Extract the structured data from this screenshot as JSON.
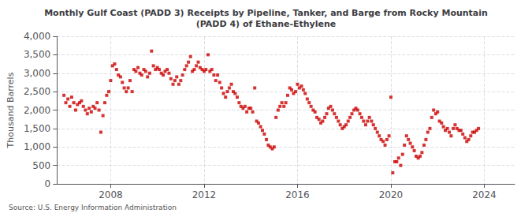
{
  "chart_data": {
    "type": "scatter",
    "title": "Monthly Gulf Coast (PADD 3) Receipts by Pipeline, Tanker, and Barge from Rocky Mountain\n(PADD 4) of Ethane-Ethylene",
    "ylabel": "Thousand Barrels",
    "annotation": "Source: U.S. Energy Information Administration",
    "color": "#CC0000",
    "marker": "square",
    "grid": true,
    "xlim": [
      2005.7,
      2025.3
    ],
    "xticks": [
      2008,
      2012,
      2016,
      2020,
      2024
    ],
    "ylim": [
      0,
      4000
    ],
    "yticks": [
      0,
      500,
      {
        "value": 1000,
        "label": "1,000"
      },
      {
        "value": 1500,
        "label": "1,500"
      },
      {
        "value": 2000,
        "label": "2,000"
      },
      {
        "value": 2500,
        "label": "2,500"
      },
      {
        "value": 3000,
        "label": "3,000"
      },
      {
        "value": 3500,
        "label": "3,500"
      },
      {
        "value": 4000,
        "label": "4,000"
      }
    ],
    "x": [
      2006.0,
      2006.08,
      2006.17,
      2006.25,
      2006.33,
      2006.42,
      2006.5,
      2006.58,
      2006.67,
      2006.75,
      2006.83,
      2006.92,
      2007.0,
      2007.08,
      2007.17,
      2007.25,
      2007.33,
      2007.42,
      2007.5,
      2007.58,
      2007.67,
      2007.75,
      2007.83,
      2007.92,
      2008.0,
      2008.08,
      2008.17,
      2008.25,
      2008.33,
      2008.42,
      2008.5,
      2008.58,
      2008.67,
      2008.75,
      2008.83,
      2008.92,
      2009.0,
      2009.08,
      2009.17,
      2009.25,
      2009.33,
      2009.42,
      2009.5,
      2009.58,
      2009.67,
      2009.75,
      2009.83,
      2009.92,
      2010.0,
      2010.08,
      2010.17,
      2010.25,
      2010.33,
      2010.42,
      2010.5,
      2010.58,
      2010.67,
      2010.75,
      2010.83,
      2010.92,
      2011.0,
      2011.08,
      2011.17,
      2011.25,
      2011.33,
      2011.42,
      2011.5,
      2011.58,
      2011.67,
      2011.75,
      2011.83,
      2011.92,
      2012.0,
      2012.08,
      2012.17,
      2012.25,
      2012.33,
      2012.42,
      2012.5,
      2012.58,
      2012.67,
      2012.75,
      2012.83,
      2012.92,
      2013.0,
      2013.08,
      2013.17,
      2013.25,
      2013.33,
      2013.42,
      2013.5,
      2013.58,
      2013.67,
      2013.75,
      2013.83,
      2013.92,
      2014.0,
      2014.08,
      2014.17,
      2014.25,
      2014.33,
      2014.42,
      2014.5,
      2014.58,
      2014.67,
      2014.75,
      2014.83,
      2014.92,
      2015.0,
      2015.08,
      2015.17,
      2015.25,
      2015.33,
      2015.42,
      2015.5,
      2015.58,
      2015.67,
      2015.75,
      2015.83,
      2015.92,
      2016.0,
      2016.08,
      2016.17,
      2016.25,
      2016.33,
      2016.42,
      2016.5,
      2016.58,
      2016.67,
      2016.75,
      2016.83,
      2016.92,
      2017.0,
      2017.08,
      2017.17,
      2017.25,
      2017.33,
      2017.42,
      2017.5,
      2017.58,
      2017.67,
      2017.75,
      2017.83,
      2017.92,
      2018.0,
      2018.08,
      2018.17,
      2018.25,
      2018.33,
      2018.42,
      2018.5,
      2018.58,
      2018.67,
      2018.75,
      2018.83,
      2018.92,
      2019.0,
      2019.08,
      2019.17,
      2019.25,
      2019.33,
      2019.42,
      2019.5,
      2019.58,
      2019.67,
      2019.75,
      2019.83,
      2019.92,
      2020.0,
      2020.08,
      2020.17,
      2020.25,
      2020.33,
      2020.42,
      2020.5,
      2020.58,
      2020.67,
      2020.75,
      2020.83,
      2020.92,
      2021.0,
      2021.08,
      2021.17,
      2021.25,
      2021.33,
      2021.42,
      2021.5,
      2021.58,
      2021.67,
      2021.75,
      2021.83,
      2021.92,
      2022.0,
      2022.08,
      2022.17,
      2022.25,
      2022.33,
      2022.42,
      2022.5,
      2022.58,
      2022.67,
      2022.75,
      2022.83,
      2022.92,
      2023.0,
      2023.08,
      2023.17,
      2023.25,
      2023.33,
      2023.42,
      2023.5,
      2023.58,
      2023.67,
      2023.75
    ],
    "values": [
      2400,
      2200,
      2300,
      2100,
      2350,
      2200,
      2000,
      2150,
      2200,
      2250,
      2100,
      2000,
      1900,
      2050,
      1950,
      2100,
      2050,
      2200,
      2000,
      1400,
      1850,
      2200,
      2400,
      2500,
      2800,
      3200,
      3250,
      3100,
      2950,
      2900,
      2750,
      2600,
      2500,
      2600,
      2800,
      2500,
      3100,
      3050,
      3150,
      3000,
      2950,
      3100,
      3050,
      2900,
      3000,
      3600,
      3200,
      3100,
      3150,
      3100,
      3000,
      2950,
      3050,
      3100,
      3000,
      2850,
      2700,
      2800,
      2900,
      2700,
      2800,
      2950,
      3100,
      3200,
      3300,
      3450,
      3050,
      3100,
      3200,
      3300,
      3150,
      3100,
      3050,
      3100,
      3500,
      3050,
      3100,
      2950,
      2800,
      2950,
      2750,
      2600,
      2450,
      2350,
      2500,
      2600,
      2700,
      2500,
      2450,
      2350,
      2200,
      2100,
      2050,
      2100,
      1950,
      2050,
      2050,
      1950,
      2600,
      1700,
      1650,
      1550,
      1450,
      1350,
      1200,
      1050,
      1000,
      950,
      1000,
      1800,
      2000,
      2100,
      2200,
      2100,
      2200,
      2400,
      2600,
      2550,
      2450,
      2500,
      2700,
      2600,
      2650,
      2550,
      2450,
      2300,
      2200,
      2100,
      2000,
      1950,
      1800,
      1750,
      1650,
      1700,
      1800,
      1900,
      2050,
      2100,
      2000,
      1900,
      1800,
      1700,
      1600,
      1500,
      1550,
      1600,
      1700,
      1800,
      1900,
      2000,
      2050,
      2000,
      1900,
      1800,
      1700,
      1600,
      1700,
      1800,
      1700,
      1600,
      1500,
      1400,
      1300,
      1200,
      1150,
      1050,
      1200,
      1300,
      2350,
      300,
      600,
      600,
      700,
      500,
      800,
      1050,
      1300,
      1200,
      1100,
      1000,
      900,
      750,
      700,
      750,
      850,
      1050,
      1200,
      1400,
      1500,
      1800,
      2000,
      1900,
      1950,
      1700,
      1650,
      1550,
      1450,
      1500,
      1400,
      1300,
      1500,
      1600,
      1500,
      1450,
      1450,
      1350,
      1250,
      1150,
      1200,
      1300,
      1400,
      1400,
      1450,
      1500
    ]
  }
}
